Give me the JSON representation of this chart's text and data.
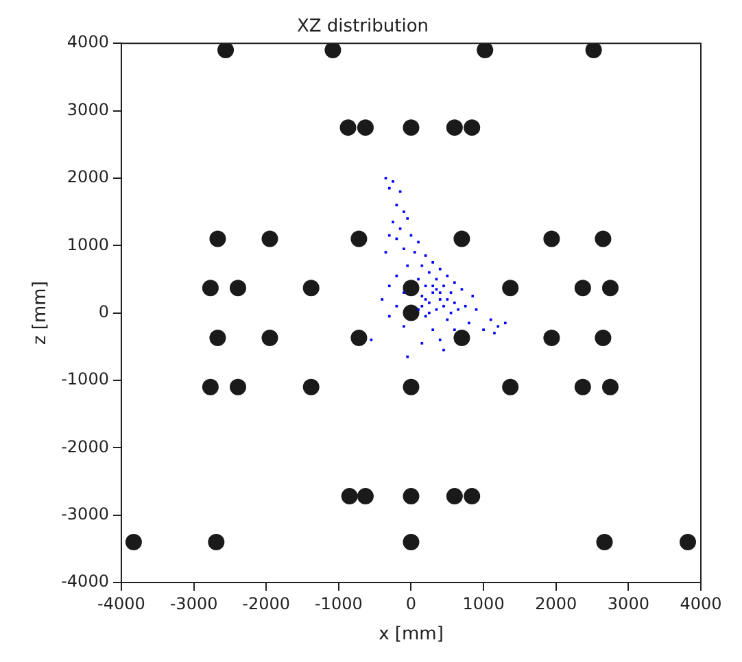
{
  "chart_data": {
    "type": "scatter",
    "title": "XZ distribution",
    "xlabel": "x [mm]",
    "ylabel": "z [mm]",
    "xlim": [
      -4000,
      4000
    ],
    "ylim": [
      -4000,
      4000
    ],
    "xticks": [
      -4000,
      -3000,
      -2000,
      -1000,
      0,
      1000,
      2000,
      3000,
      4000
    ],
    "yticks": [
      -4000,
      -3000,
      -2000,
      -1000,
      0,
      1000,
      2000,
      3000,
      4000
    ],
    "grid": false,
    "legend": false,
    "series": [
      {
        "color": "#0000ff",
        "marker": "square",
        "x": [
          -350,
          -250,
          -300,
          -150,
          -200,
          -100,
          -50,
          -250,
          -150,
          -300,
          -200,
          0,
          100,
          -100,
          50,
          -350,
          200,
          300,
          150,
          -50,
          400,
          250,
          -200,
          500,
          100,
          350,
          -300,
          600,
          200,
          450,
          -100,
          300,
          150,
          550,
          700,
          850,
          -400,
          400,
          250,
          600,
          -200,
          100,
          350,
          750,
          900,
          -300,
          200,
          500,
          800,
          -100,
          300,
          600,
          400,
          150,
          450,
          -50,
          1100,
          1200,
          1000,
          1300,
          1150,
          -550,
          300,
          400,
          200,
          500,
          350,
          450,
          250,
          550,
          150,
          650
        ],
        "values": [
          2000,
          1950,
          1850,
          1800,
          1600,
          1500,
          1400,
          1350,
          1250,
          1150,
          1100,
          1150,
          1050,
          950,
          900,
          900,
          850,
          750,
          700,
          700,
          650,
          600,
          550,
          550,
          500,
          500,
          400,
          450,
          400,
          400,
          300,
          300,
          250,
          300,
          350,
          250,
          200,
          200,
          150,
          150,
          100,
          50,
          50,
          100,
          50,
          -50,
          -50,
          -100,
          -150,
          -200,
          -250,
          -250,
          -400,
          -450,
          -550,
          -650,
          -100,
          -200,
          -250,
          -150,
          -300,
          -400,
          400,
          300,
          200,
          200,
          350,
          100,
          0,
          0,
          100,
          50
        ]
      },
      {
        "color": "#1a1a1a",
        "marker": "circle",
        "x": [
          -2560,
          -1080,
          1020,
          2520,
          -870,
          -630,
          0,
          600,
          840,
          -2670,
          -1950,
          -720,
          700,
          1940,
          2650,
          -2770,
          -2390,
          -1380,
          0,
          1370,
          2370,
          2750,
          0,
          -2670,
          -1950,
          -720,
          700,
          1940,
          2650,
          -2770,
          -2390,
          -1380,
          0,
          1370,
          2370,
          2750,
          -850,
          -630,
          0,
          600,
          840,
          -3830,
          -2690,
          0,
          2670,
          3820
        ],
        "values": [
          3900,
          3900,
          3900,
          3900,
          2750,
          2750,
          2750,
          2750,
          2750,
          1100,
          1100,
          1100,
          1100,
          1100,
          1100,
          370,
          370,
          370,
          370,
          370,
          370,
          370,
          0,
          -370,
          -370,
          -370,
          -370,
          -370,
          -370,
          -1100,
          -1100,
          -1100,
          -1100,
          -1100,
          -1100,
          -1100,
          -2720,
          -2720,
          -2720,
          -2720,
          -2720,
          -3400,
          -3400,
          -3400,
          -3400,
          -3400
        ]
      }
    ]
  }
}
